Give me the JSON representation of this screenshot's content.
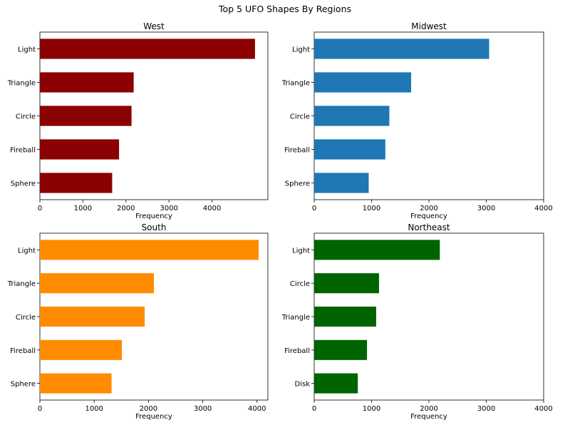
{
  "figure": {
    "title": "Top 5 UFO Shapes By Regions"
  },
  "chart_data": [
    {
      "type": "bar",
      "orientation": "horizontal",
      "title": "West",
      "xlabel": "Frequency",
      "ylabel": "",
      "categories": [
        "Light",
        "Triangle",
        "Circle",
        "Fireball",
        "Sphere"
      ],
      "values": [
        5000,
        2180,
        2130,
        1840,
        1680
      ],
      "xlim": [
        0,
        5300
      ],
      "xticks": [
        0,
        1000,
        2000,
        3000,
        4000
      ],
      "color": "#8b0000",
      "grid": false,
      "legend": "none"
    },
    {
      "type": "bar",
      "orientation": "horizontal",
      "title": "Midwest",
      "xlabel": "Frequency",
      "ylabel": "",
      "categories": [
        "Light",
        "Triangle",
        "Circle",
        "Fireball",
        "Sphere"
      ],
      "values": [
        3050,
        1690,
        1310,
        1240,
        950
      ],
      "xlim": [
        0,
        4000
      ],
      "xticks": [
        0,
        1000,
        2000,
        3000,
        4000
      ],
      "color": "#1f77b4",
      "grid": false,
      "legend": "none"
    },
    {
      "type": "bar",
      "orientation": "horizontal",
      "title": "South",
      "xlabel": "Frequency",
      "ylabel": "",
      "categories": [
        "Light",
        "Triangle",
        "Circle",
        "Fireball",
        "Sphere"
      ],
      "values": [
        4030,
        2100,
        1930,
        1510,
        1320
      ],
      "xlim": [
        0,
        4200
      ],
      "xticks": [
        0,
        1000,
        2000,
        3000,
        4000
      ],
      "color": "#ff8c00",
      "grid": false,
      "legend": "none"
    },
    {
      "type": "bar",
      "orientation": "horizontal",
      "title": "Northeast",
      "xlabel": "Frequency",
      "ylabel": "",
      "categories": [
        "Light",
        "Circle",
        "Triangle",
        "Fireball",
        "Disk"
      ],
      "values": [
        2190,
        1130,
        1080,
        920,
        760
      ],
      "xlim": [
        0,
        4000
      ],
      "xticks": [
        0,
        1000,
        2000,
        3000,
        4000
      ],
      "color": "#006400",
      "grid": false,
      "legend": "none"
    }
  ]
}
